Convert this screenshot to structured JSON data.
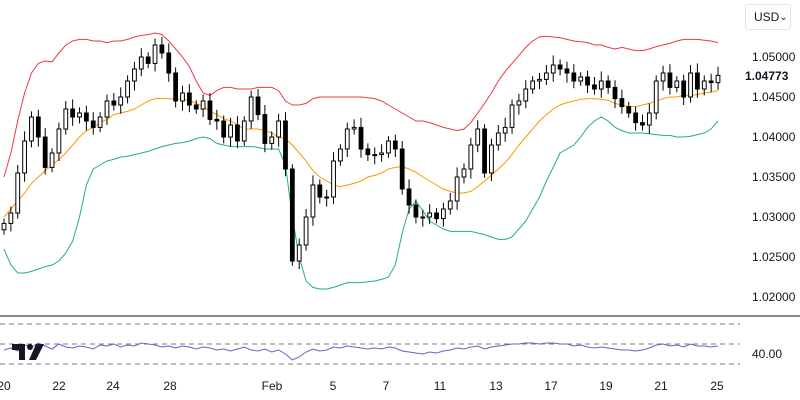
{
  "currency_selector": {
    "value": "USD"
  },
  "logo": {
    "name": "tradingview-logo"
  },
  "current_price": "1.04773",
  "chart_data": [
    {
      "type": "candlestick",
      "title": "",
      "y_ticks": [
        "1.05000",
        "1.04500",
        "1.04000",
        "1.03500",
        "1.03000",
        "1.02500",
        "1.02000"
      ],
      "ylim": [
        1.0185,
        1.0535
      ],
      "x_ticks": [
        "20",
        "22",
        "24",
        "28",
        "Feb",
        "5",
        "7",
        "11",
        "13",
        "17",
        "19",
        "21",
        "25"
      ],
      "overlays": [
        {
          "name": "upper-band",
          "color": "#f23645"
        },
        {
          "name": "middle-band",
          "color": "#ff9800"
        },
        {
          "name": "lower-band",
          "color": "#22ab94"
        }
      ],
      "candle_color": "#000000",
      "series": [
        {
          "name": "close",
          "values": [
            1.0292,
            1.0305,
            1.0355,
            1.0395,
            1.0425,
            1.04,
            1.0362,
            1.038,
            1.041,
            1.0435,
            1.0425,
            1.043,
            1.042,
            1.0412,
            1.0425,
            1.0445,
            1.044,
            1.045,
            1.047,
            1.0485,
            1.05,
            1.0492,
            1.0515,
            1.0505,
            1.048,
            1.0445,
            1.0455,
            1.044,
            1.0435,
            1.0445,
            1.0422,
            1.042,
            1.04,
            1.0415,
            1.0395,
            1.042,
            1.045,
            1.0428,
            1.0392,
            1.04,
            1.042,
            1.036,
            1.0245,
            1.0265,
            1.03,
            1.034,
            1.0325,
            1.0325,
            1.037,
            1.0385,
            1.041,
            1.0412,
            1.0385,
            1.0378,
            1.0378,
            1.038,
            1.0395,
            1.0385,
            1.0335,
            1.0315,
            1.03,
            1.03,
            1.0305,
            1.0298,
            1.031,
            1.032,
            1.035,
            1.036,
            1.039,
            1.041,
            1.0355,
            1.039,
            1.0405,
            1.0412,
            1.044,
            1.0445,
            1.046,
            1.047,
            1.0472,
            1.048,
            1.049,
            1.0485,
            1.048,
            1.047,
            1.0475,
            1.0465,
            1.046,
            1.047,
            1.0462,
            1.0448,
            1.0438,
            1.043,
            1.0418,
            1.0415,
            1.043,
            1.047,
            1.048,
            1.0462,
            1.047,
            1.045,
            1.048,
            1.046,
            1.047,
            1.0468,
            1.0477
          ]
        },
        {
          "name": "upper-band",
          "values": [
            1.035,
            1.038,
            1.042,
            1.0455,
            1.048,
            1.0492,
            1.0495,
            1.0494,
            1.0505,
            1.0515,
            1.052,
            1.0522,
            1.0522,
            1.052,
            1.052,
            1.0518,
            1.052,
            1.052,
            1.0522,
            1.0525,
            1.0527,
            1.0528,
            1.053,
            1.0528,
            1.052,
            1.051,
            1.05,
            1.0488,
            1.047,
            1.0455,
            1.0452,
            1.0458,
            1.0462,
            1.0462,
            1.046,
            1.046,
            1.046,
            1.0462,
            1.0462,
            1.0462,
            1.0458,
            1.0445,
            1.044,
            1.044,
            1.0442,
            1.0448,
            1.045,
            1.045,
            1.045,
            1.045,
            1.045,
            1.045,
            1.045,
            1.0449,
            1.0448,
            1.0445,
            1.044,
            1.0435,
            1.043,
            1.0425,
            1.042,
            1.042,
            1.0418,
            1.0415,
            1.0412,
            1.041,
            1.0408,
            1.041,
            1.0418,
            1.043,
            1.0442,
            1.0455,
            1.047,
            1.0482,
            1.0492,
            1.0502,
            1.0512,
            1.052,
            1.0525,
            1.0526,
            1.0525,
            1.0524,
            1.0522,
            1.052,
            1.0519,
            1.0518,
            1.0515,
            1.0515,
            1.0512,
            1.051,
            1.0512,
            1.051,
            1.0508,
            1.0508,
            1.051,
            1.0513,
            1.0515,
            1.0517,
            1.052,
            1.0522,
            1.0522,
            1.0522,
            1.0521,
            1.052,
            1.0518
          ]
        },
        {
          "name": "middle-band",
          "values": [
            1.03,
            1.031,
            1.032,
            1.033,
            1.0342,
            1.035,
            1.0358,
            1.0365,
            1.0372,
            1.038,
            1.039,
            1.04,
            1.0408,
            1.0412,
            1.0418,
            1.0422,
            1.0428,
            1.043,
            1.0432,
            1.0435,
            1.044,
            1.0445,
            1.0448,
            1.0448,
            1.0448,
            1.0447,
            1.0447,
            1.0446,
            1.0442,
            1.0438,
            1.0432,
            1.0428,
            1.0423,
            1.042,
            1.0415,
            1.041,
            1.041,
            1.041,
            1.0408,
            1.0405,
            1.04,
            1.0398,
            1.039,
            1.038,
            1.037,
            1.0358,
            1.035,
            1.0345,
            1.034,
            1.0338,
            1.034,
            1.0342,
            1.0345,
            1.035,
            1.0352,
            1.0355,
            1.036,
            1.0362,
            1.0363,
            1.036,
            1.0356,
            1.035,
            1.0345,
            1.034,
            1.0335,
            1.0332,
            1.033,
            1.033,
            1.0332,
            1.0338,
            1.0345,
            1.0352,
            1.036,
            1.0368,
            1.0378,
            1.039,
            1.04,
            1.041,
            1.042,
            1.0428,
            1.0435,
            1.044,
            1.0443,
            1.0445,
            1.0447,
            1.0448,
            1.0448,
            1.0447,
            1.0446,
            1.0442,
            1.044,
            1.0438,
            1.0438,
            1.044,
            1.0442,
            1.0445,
            1.0448,
            1.045,
            1.045,
            1.0452,
            1.0452,
            1.0453,
            1.0455,
            1.0456,
            1.0458
          ]
        },
        {
          "name": "lower-band",
          "values": [
            1.026,
            1.024,
            1.023,
            1.023,
            1.0232,
            1.0235,
            1.0238,
            1.024,
            1.0245,
            1.0255,
            1.027,
            1.03,
            1.034,
            1.036,
            1.0365,
            1.037,
            1.0372,
            1.0375,
            1.0376,
            1.0378,
            1.038,
            1.0382,
            1.0385,
            1.0388,
            1.039,
            1.0392,
            1.0393,
            1.0395,
            1.0398,
            1.04,
            1.0398,
            1.0392,
            1.039,
            1.0388,
            1.0388,
            1.0388,
            1.0388,
            1.0387,
            1.0385,
            1.0385,
            1.0385,
            1.0365,
            1.03,
            1.025,
            1.022,
            1.0212,
            1.021,
            1.021,
            1.0212,
            1.0215,
            1.0218,
            1.0218,
            1.0218,
            1.0219,
            1.022,
            1.0222,
            1.0225,
            1.024,
            1.028,
            1.031,
            1.032,
            1.0308,
            1.0295,
            1.029,
            1.0285,
            1.0282,
            1.0282,
            1.0282,
            1.0282,
            1.028,
            1.0278,
            1.0275,
            1.0272,
            1.0272,
            1.0275,
            1.0285,
            1.0295,
            1.031,
            1.0325,
            1.0345,
            1.0362,
            1.038,
            1.0385,
            1.039,
            1.04,
            1.0412,
            1.042,
            1.0425,
            1.042,
            1.0412,
            1.0408,
            1.0405,
            1.0405,
            1.0405,
            1.0404,
            1.0403,
            1.0402,
            1.0402,
            1.04,
            1.04,
            1.0401,
            1.0403,
            1.0405,
            1.041,
            1.042
          ]
        }
      ]
    },
    {
      "type": "line",
      "title": "",
      "y_ticks": [
        "40.00"
      ],
      "series": [
        {
          "name": "oscillator",
          "color": "#7e57c2",
          "values": [
            44,
            46,
            43,
            49,
            47,
            51,
            48,
            45,
            50,
            47,
            46,
            48,
            47,
            45,
            49,
            48,
            50,
            47,
            49,
            48,
            51,
            50,
            49,
            47,
            48,
            46,
            48,
            47,
            45,
            47,
            46,
            44,
            45,
            43,
            45,
            47,
            44,
            43,
            45,
            42,
            44,
            40,
            34,
            37,
            42,
            45,
            43,
            44,
            47,
            46,
            48,
            47,
            46,
            45,
            46,
            45,
            47,
            46,
            43,
            42,
            41,
            40,
            42,
            41,
            43,
            44,
            46,
            45,
            47,
            48,
            45,
            47,
            48,
            49,
            50,
            50,
            51,
            51,
            50,
            51,
            51,
            50,
            50,
            48,
            49,
            47,
            46,
            47,
            46,
            45,
            44,
            44,
            43,
            44,
            46,
            49,
            50,
            48,
            49,
            47,
            50,
            48,
            48,
            47,
            48
          ]
        }
      ]
    }
  ]
}
